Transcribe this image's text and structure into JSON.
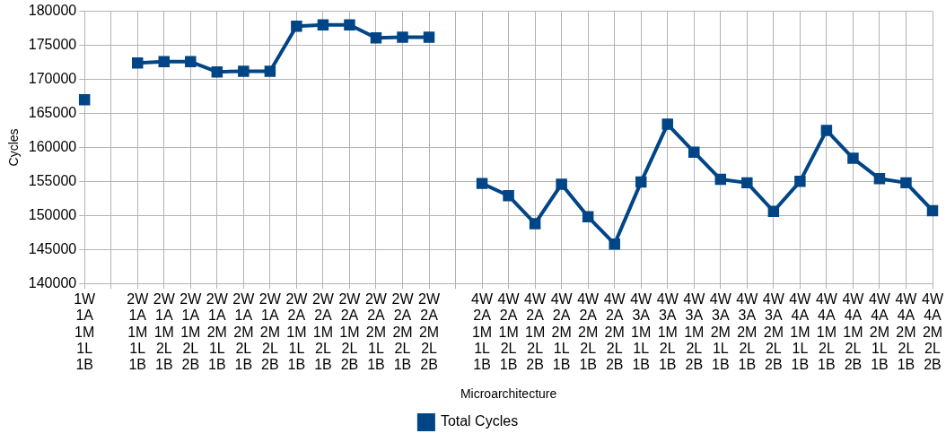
{
  "chart_data": {
    "type": "line",
    "xlabel": "Microarchitecture",
    "ylabel": "Cycles",
    "categories": [
      "1W\n1A\n1M\n1L\n1B",
      null,
      "2W\n1A\n1M\n1L\n1B",
      "2W\n1A\n1M\n2L\n1B",
      "2W\n1A\n1M\n2L\n2B",
      "2W\n1A\n2M\n1L\n1B",
      "2W\n1A\n2M\n2L\n1B",
      "2W\n1A\n2M\n2L\n2B",
      "2W\n2A\n1M\n1L\n1B",
      "2W\n2A\n1M\n2L\n1B",
      "2W\n2A\n1M\n2L\n2B",
      "2W\n2A\n2M\n1L\n1B",
      "2W\n2A\n2M\n2L\n1B",
      "2W\n2A\n2M\n2L\n2B",
      null,
      "4W\n2A\n1M\n1L\n1B",
      "4W\n2A\n1M\n2L\n1B",
      "4W\n2A\n1M\n2L\n2B",
      "4W\n2A\n2M\n1L\n1B",
      "4W\n2A\n2M\n2L\n1B",
      "4W\n2A\n2M\n2L\n2B",
      "4W\n3A\n1M\n1L\n1B",
      "4W\n3A\n1M\n2L\n1B",
      "4W\n3A\n1M\n2L\n2B",
      "4W\n3A\n2M\n1L\n1B",
      "4W\n3A\n2M\n2L\n1B",
      "4W\n3A\n2M\n2L\n2B",
      "4W\n4A\n1M\n1L\n1B",
      "4W\n4A\n1M\n2L\n1B",
      "4W\n4A\n1M\n2L\n2B",
      "4W\n4A\n2M\n1L\n1B",
      "4W\n4A\n2M\n2L\n1B",
      "4W\n4A\n2M\n2L\n2B"
    ],
    "series": [
      {
        "name": "Total Cycles",
        "color": "#004586",
        "values": [
          167000,
          null,
          172400,
          172600,
          172600,
          171100,
          171200,
          171200,
          177800,
          178000,
          178000,
          176100,
          176200,
          176200,
          null,
          154700,
          152900,
          148800,
          154600,
          149800,
          145800,
          154900,
          163400,
          159300,
          155300,
          154800,
          150600,
          155000,
          162500,
          158400,
          155400,
          154800,
          150700
        ]
      }
    ],
    "ylim": [
      140000,
      180000
    ],
    "yticks": [
      140000,
      145000,
      150000,
      155000,
      160000,
      165000,
      170000,
      175000,
      180000
    ],
    "grid": true,
    "legend": "bottom",
    "marker": "square",
    "line_style": "solid"
  }
}
